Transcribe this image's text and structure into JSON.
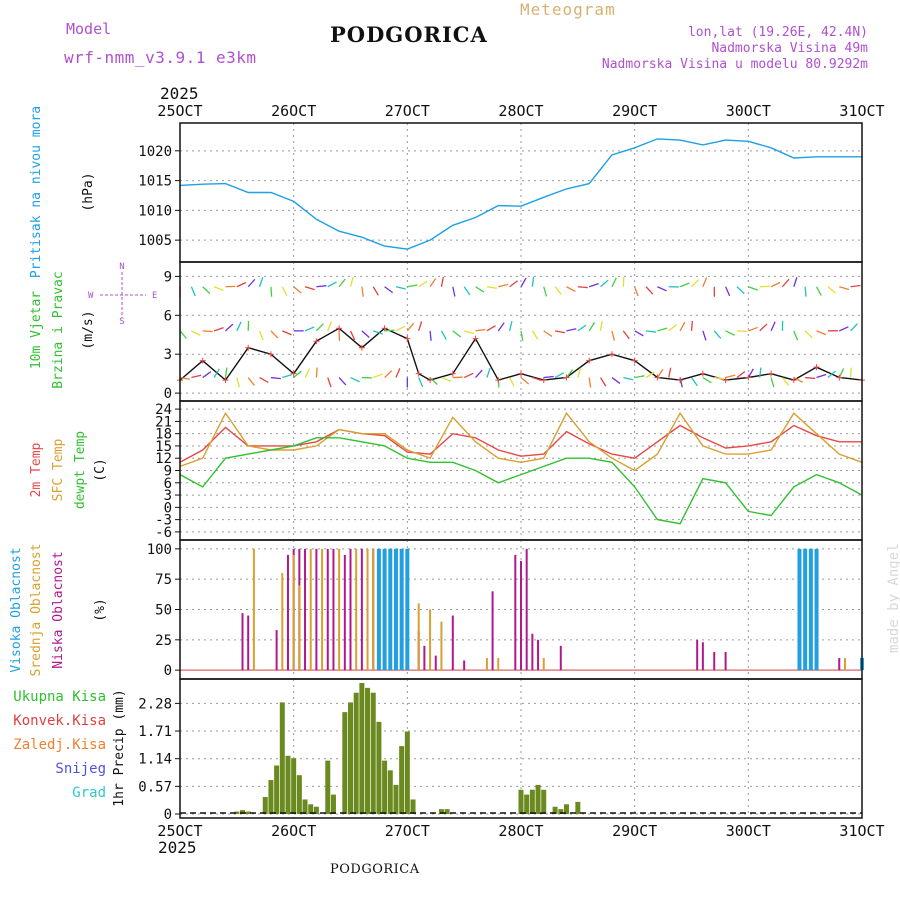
{
  "header": {
    "model_label": "Model",
    "model_name": "wrf-nmm_v3.9.1 e3km",
    "title": "PODGORICA",
    "subtitle": "Meteogram",
    "coords": "lon,lat (19.26E, 42.4N)",
    "elevation": "Nadmorska Visina 49m",
    "model_elevation": "Nadmorska Visina u modelu 80.9292m",
    "year": "2025",
    "footer_title": "PODGORICA",
    "credit": "made by Angel"
  },
  "colors": {
    "pressure": "#1ea0e6",
    "temp2m": "#e84848",
    "sfctemp": "#d8a030",
    "dewpoint": "#30c030",
    "low_cloud": "#b01890",
    "mid_cloud": "#d8a030",
    "high_cloud": "#20a0e0",
    "precip_total": "#30c030",
    "precip_conv": "#e04040",
    "freezing": "#f08030",
    "snow": "#5050e0",
    "hail": "#30c8c8",
    "axis_purple": "#b050d0",
    "grid": "#999999"
  },
  "chart_data": {
    "type": "meteogram",
    "x_ticks": [
      "25OCT",
      "26OCT",
      "27OCT",
      "28OCT",
      "29OCT",
      "30OCT",
      "31OCT"
    ],
    "x_range": [
      0,
      6
    ],
    "panels": [
      {
        "id": "pressure",
        "ylabel_main": "Pritisak na nivou mora",
        "ylabel_unit": "(hPa)",
        "ylim": [
          1002,
          1024
        ],
        "yticks": [
          1005,
          1010,
          1015,
          1020
        ],
        "series": [
          {
            "name": "Pritisak",
            "x": [
              0,
              0.2,
              0.4,
              0.6,
              0.8,
              1.0,
              1.2,
              1.4,
              1.6,
              1.8,
              2.0,
              2.2,
              2.4,
              2.6,
              2.8,
              3.0,
              3.2,
              3.4,
              3.6,
              3.8,
              4.0,
              4.2,
              4.4,
              4.6,
              4.8,
              5.0,
              5.2,
              5.4,
              5.6,
              5.8,
              6.0
            ],
            "values": [
              1014.2,
              1014.4,
              1014.5,
              1013.0,
              1013.0,
              1011.5,
              1008.5,
              1006.5,
              1005.5,
              1004.0,
              1003.5,
              1005.0,
              1007.5,
              1008.8,
              1010.8,
              1010.7,
              1012.2,
              1013.6,
              1014.5,
              1019.3,
              1020.5,
              1022.0,
              1021.8,
              1021.0,
              1021.8,
              1021.6,
              1020.5,
              1018.8,
              1019.0,
              1019.0,
              1019.0
            ]
          }
        ]
      },
      {
        "id": "wind",
        "ylabel_main": "10m Vjetar",
        "ylabel_main2": "Brzina i Pravac",
        "ylabel_unit": "(m/s)",
        "compass": {
          "n": "N",
          "w": "W",
          "e": "E",
          "s": "S"
        },
        "ylim": [
          -0.3,
          9.8
        ],
        "yticks": [
          0,
          3,
          6,
          9
        ],
        "series": [
          {
            "name": "Brzina",
            "x": [
              0,
              0.2,
              0.4,
              0.6,
              0.8,
              1.0,
              1.2,
              1.4,
              1.6,
              1.8,
              2.0,
              2.1,
              2.2,
              2.4,
              2.6,
              2.8,
              3.0,
              3.2,
              3.4,
              3.6,
              3.8,
              4.0,
              4.2,
              4.4,
              4.6,
              4.8,
              5.0,
              5.2,
              5.4,
              5.6,
              5.8,
              6.0
            ],
            "values": [
              1.0,
              2.5,
              1.0,
              3.5,
              3.0,
              1.5,
              4.0,
              5.0,
              3.5,
              5.0,
              4.2,
              1.5,
              1.0,
              1.5,
              4.2,
              1.0,
              1.5,
              1.0,
              1.2,
              2.5,
              3.0,
              2.5,
              1.2,
              1.0,
              1.5,
              1.0,
              1.2,
              1.5,
              1.0,
              2.0,
              1.2,
              1.0
            ]
          }
        ],
        "arrow_rows": [
          8.2,
          4.8,
          1.2
        ]
      },
      {
        "id": "temperature",
        "ylabel_main": "2m Temp",
        "ylabel_main2": "SFC Temp",
        "ylabel_main3": "dewpt Temp",
        "ylabel_unit": "(C)",
        "ylim": [
          -7,
          25
        ],
        "yticks": [
          -6,
          -3,
          0,
          3,
          6,
          9,
          12,
          15,
          18,
          21,
          24
        ],
        "series": [
          {
            "name": "2m Temp",
            "x": [
              0,
              0.2,
              0.4,
              0.6,
              0.8,
              1.0,
              1.2,
              1.4,
              1.6,
              1.8,
              2.0,
              2.2,
              2.4,
              2.6,
              2.8,
              3.0,
              3.2,
              3.4,
              3.6,
              3.8,
              4.0,
              4.2,
              4.4,
              4.6,
              4.8,
              5.0,
              5.2,
              5.4,
              5.6,
              5.8,
              6.0
            ],
            "values": [
              11,
              14,
              19.5,
              15,
              15,
              15,
              16,
              19,
              18,
              17.5,
              13.5,
              13,
              18,
              17,
              14,
              12.5,
              13,
              18.5,
              15.5,
              13,
              12,
              16,
              20,
              17,
              14.5,
              15,
              16,
              20,
              17.5,
              16,
              16
            ]
          },
          {
            "name": "SFC Temp",
            "x": [
              0,
              0.2,
              0.4,
              0.6,
              0.8,
              1.0,
              1.2,
              1.4,
              1.6,
              1.8,
              2.0,
              2.2,
              2.4,
              2.6,
              2.8,
              3.0,
              3.2,
              3.4,
              3.6,
              3.8,
              4.0,
              4.2,
              4.4,
              4.6,
              4.8,
              5.0,
              5.2,
              5.4,
              5.6,
              5.8,
              6.0
            ],
            "values": [
              10,
              12,
              23,
              15,
              14,
              14,
              15,
              19,
              18,
              18,
              14,
              12,
              22,
              16,
              12,
              11,
              12,
              23,
              16,
              12,
              9,
              13,
              23,
              15,
              13,
              13,
              14,
              23,
              18,
              13,
              11
            ]
          },
          {
            "name": "dewpt Temp",
            "x": [
              0,
              0.2,
              0.4,
              0.6,
              0.8,
              1.0,
              1.2,
              1.4,
              1.6,
              1.8,
              2.0,
              2.2,
              2.4,
              2.6,
              2.8,
              3.0,
              3.2,
              3.4,
              3.6,
              3.8,
              4.0,
              4.2,
              4.4,
              4.6,
              4.8,
              5.0,
              5.2,
              5.4,
              5.6,
              5.8,
              6.0
            ],
            "values": [
              8,
              5,
              12,
              13,
              14,
              15,
              17,
              17,
              16,
              15,
              12,
              11,
              11,
              9,
              6,
              8,
              10,
              12,
              12,
              11,
              5,
              -3,
              -4,
              7,
              6,
              -1,
              -2,
              5,
              8,
              6,
              3
            ]
          }
        ]
      },
      {
        "id": "clouds",
        "ylabel_main": "Visoka Oblacnost",
        "ylabel_main2": "Srednja Oblacnost",
        "ylabel_main3": "Niska Oblacnost",
        "ylabel_unit": "(%)",
        "ylim": [
          -4,
          104
        ],
        "yticks": [
          0,
          25,
          50,
          75,
          100
        ],
        "low": {
          "x": [
            0.55,
            0.6,
            0.85,
            0.95,
            1.0,
            1.05,
            1.1,
            1.2,
            1.3,
            1.35,
            1.45,
            1.5,
            1.6,
            1.7,
            1.75,
            1.85,
            1.9,
            2.0,
            2.1,
            2.15,
            2.25,
            2.4,
            2.5,
            2.75,
            2.95,
            3.0,
            3.05,
            3.1,
            3.15,
            3.35,
            4.55,
            4.6,
            4.7,
            4.8,
            5.8
          ],
          "values": [
            47,
            45,
            33,
            95,
            100,
            100,
            100,
            100,
            100,
            100,
            95,
            100,
            100,
            100,
            100,
            100,
            100,
            100,
            32,
            20,
            12,
            45,
            8,
            65,
            95,
            90,
            100,
            30,
            25,
            20,
            25,
            23,
            15,
            15,
            10
          ]
        },
        "mid": {
          "x": [
            0.65,
            0.9,
            1.0,
            1.05,
            1.15,
            1.25,
            1.4,
            1.55,
            1.65,
            1.7,
            1.8,
            1.95,
            2.0,
            2.1,
            2.2,
            2.3,
            2.7,
            2.8,
            3.2,
            5.85
          ],
          "values": [
            100,
            80,
            95,
            70,
            100,
            100,
            100,
            100,
            100,
            100,
            100,
            100,
            100,
            55,
            50,
            40,
            10,
            10,
            10,
            10
          ]
        },
        "high": {
          "x": [
            1.75,
            1.8,
            1.85,
            1.9,
            1.95,
            2.0,
            5.45,
            5.5,
            5.55,
            5.6,
            6.0
          ],
          "values": [
            100,
            100,
            100,
            100,
            100,
            100,
            100,
            100,
            100,
            100,
            10
          ]
        }
      },
      {
        "id": "precip",
        "ylabel_main": "1hr Precip (mm)",
        "legend": [
          "Ukupna Kisa",
          "Konvek.Kisa",
          "Zaledj.Kisa",
          "Snijeg",
          "Grad"
        ],
        "ylim": [
          0,
          2.7
        ],
        "yticks": [
          0,
          0.57,
          1.14,
          1.71,
          2.28
        ],
        "ytick_labels": [
          "0",
          "0.57",
          "1.14",
          "1.71",
          "2.28"
        ],
        "x": [
          0.5,
          0.55,
          0.6,
          0.75,
          0.8,
          0.85,
          0.9,
          0.95,
          1.0,
          1.05,
          1.1,
          1.15,
          1.2,
          1.3,
          1.35,
          1.45,
          1.5,
          1.55,
          1.6,
          1.65,
          1.7,
          1.75,
          1.8,
          1.85,
          1.9,
          1.95,
          2.0,
          2.05,
          2.3,
          2.35,
          3.0,
          3.05,
          3.1,
          3.15,
          3.2,
          3.3,
          3.35,
          3.4,
          3.5
        ],
        "values": [
          0.05,
          0.08,
          0.05,
          0.35,
          0.7,
          1.0,
          2.3,
          1.2,
          1.15,
          0.8,
          0.3,
          0.2,
          0.15,
          1.1,
          0.4,
          2.1,
          2.3,
          2.5,
          2.7,
          2.6,
          2.5,
          1.9,
          1.1,
          0.9,
          0.6,
          1.4,
          1.7,
          0.3,
          0.1,
          0.1,
          0.5,
          0.4,
          0.5,
          0.6,
          0.5,
          0.15,
          0.1,
          0.2,
          0.25
        ]
      }
    ]
  }
}
